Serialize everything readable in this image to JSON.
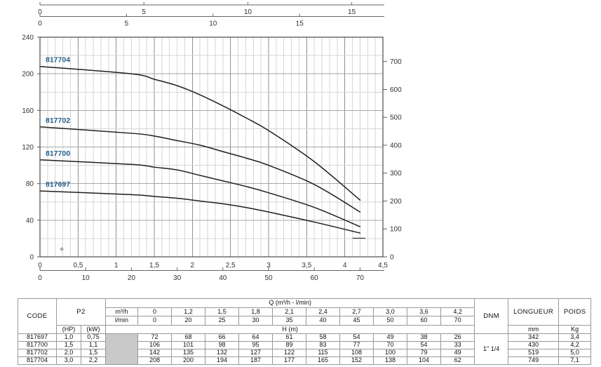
{
  "chart_data": {
    "type": "line",
    "title": "",
    "x_m3h": [
      0,
      1.2,
      1.5,
      1.8,
      2.1,
      2.4,
      2.7,
      3.0,
      3.6,
      4.2
    ],
    "series": [
      {
        "name": "817697",
        "values": [
          72,
          68,
          66,
          64,
          61,
          58,
          54,
          49,
          38,
          26
        ]
      },
      {
        "name": "817700",
        "values": [
          106,
          101,
          98,
          95,
          89,
          83,
          77,
          70,
          54,
          33
        ]
      },
      {
        "name": "817702",
        "values": [
          142,
          135,
          132,
          127,
          122,
          115,
          108,
          100,
          79,
          49
        ]
      },
      {
        "name": "817704",
        "values": [
          208,
          200,
          194,
          187,
          177,
          165,
          152,
          138,
          104,
          62
        ]
      }
    ],
    "axes": {
      "left_m": {
        "ticks": [
          0,
          40,
          80,
          120,
          160,
          200,
          240
        ],
        "min": 0,
        "max": 240,
        "minor_step": 20
      },
      "right_ft": {
        "ticks": [
          0,
          100,
          200,
          300,
          400,
          500,
          600,
          700
        ],
        "m_per_ft": 0.3048
      },
      "bottom_m3h": {
        "tick_labels": [
          "0",
          "0,5",
          "1",
          "1,5",
          "2",
          "2,5",
          "3",
          "3,5",
          "4",
          "4,5"
        ],
        "tick_values": [
          0,
          0.5,
          1,
          1.5,
          2,
          2.5,
          3,
          3.5,
          4,
          4.5
        ],
        "min": 0,
        "max": 4.5,
        "minor_step": 0.1
      },
      "bottom_lmin": {
        "ticks": [
          0,
          10,
          20,
          30,
          40,
          50,
          60,
          70
        ],
        "m3h_per_unit": 0.06
      },
      "top_imp_gpm": {
        "ticks": [
          0,
          5,
          10,
          15
        ],
        "m3h_per_unit": 0.27276
      },
      "top_us_gpm": {
        "ticks": [
          0,
          5,
          10,
          15
        ],
        "m3h_per_unit": 0.22712
      }
    },
    "grid": true,
    "legend_position": "labels-on-curves-left",
    "curve_color": "#1f1f1f",
    "curve_label_color": "#245e8a"
  },
  "table": {
    "headers": {
      "code": "CODE",
      "p2": "P2",
      "hp": "(HP)",
      "kw": "(kW)",
      "q_span": "Q (m³/h - l/min)",
      "m3h": "m³/h",
      "lmin": "l/min",
      "h_m": "H (m)",
      "dnm": "DNM",
      "longueur": "LONGUEUR",
      "poids": "POIDS",
      "mm": "mm",
      "kg": "Kg"
    },
    "q_m3h": [
      "0",
      "1,2",
      "1,5",
      "1,8",
      "2,1",
      "2,4",
      "2,7",
      "3,0",
      "3,6",
      "4,2"
    ],
    "q_lmin": [
      "0",
      "20",
      "25",
      "30",
      "35",
      "40",
      "45",
      "50",
      "60",
      "70"
    ],
    "dnm_value": "1\" 1/4",
    "rows": [
      {
        "code": "817697",
        "hp": "1,0",
        "kw": "0,75",
        "h": [
          "72",
          "68",
          "66",
          "64",
          "61",
          "58",
          "54",
          "49",
          "38",
          "26"
        ],
        "longueur": "342",
        "poids": "3,4"
      },
      {
        "code": "817700",
        "hp": "1,5",
        "kw": "1,1",
        "h": [
          "106",
          "101",
          "98",
          "95",
          "89",
          "83",
          "77",
          "70",
          "54",
          "33"
        ],
        "longueur": "430",
        "poids": "4,2"
      },
      {
        "code": "817702",
        "hp": "2,0",
        "kw": "1,5",
        "h": [
          "142",
          "135",
          "132",
          "127",
          "122",
          "115",
          "108",
          "100",
          "79",
          "49"
        ],
        "longueur": "519",
        "poids": "5,0"
      },
      {
        "code": "817704",
        "hp": "3,0",
        "kw": "2,2",
        "h": [
          "208",
          "200",
          "194",
          "187",
          "177",
          "165",
          "152",
          "138",
          "104",
          "62"
        ],
        "longueur": "749",
        "poids": "7,1"
      }
    ]
  }
}
